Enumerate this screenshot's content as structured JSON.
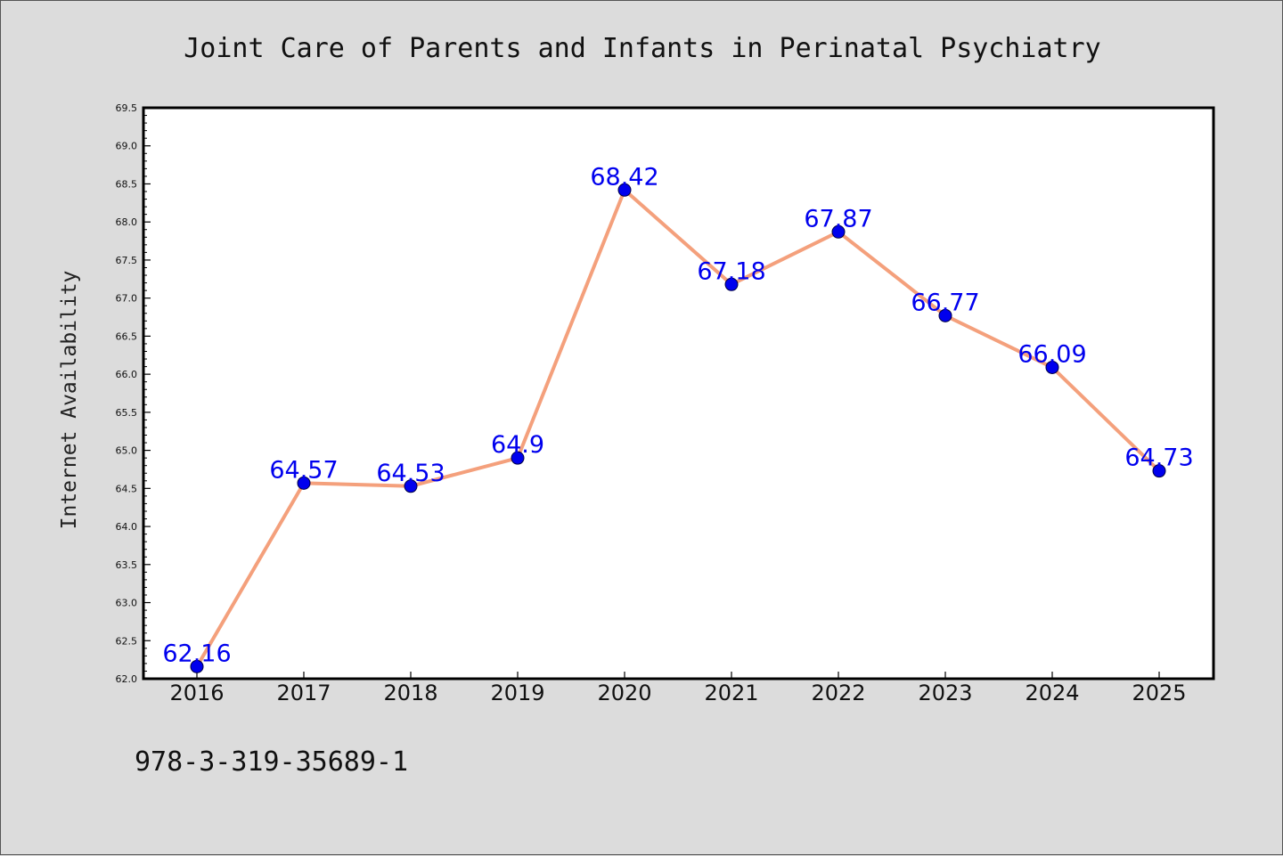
{
  "chart_data": {
    "type": "line",
    "title": "Joint Care of Parents and Infants in Perinatal Psychiatry",
    "xlabel": "",
    "ylabel": "Internet Availability",
    "categories": [
      "2016",
      "2017",
      "2018",
      "2019",
      "2020",
      "2021",
      "2022",
      "2023",
      "2024",
      "2025"
    ],
    "series": [
      {
        "values": [
          62.16,
          64.57,
          64.53,
          64.9,
          68.42,
          67.18,
          67.87,
          66.77,
          66.09,
          64.73
        ],
        "data_labels": [
          "62.16",
          "64.57",
          "64.53",
          "64.9",
          "68.42",
          "67.18",
          "67.87",
          "66.77",
          "66.09",
          "64.73"
        ]
      }
    ],
    "ylim": [
      62.0,
      69.5
    ],
    "yticks": [
      "62.0",
      "62.5",
      "63.0",
      "63.5",
      "64.0",
      "64.5",
      "65.0",
      "65.5",
      "66.0",
      "66.5",
      "67.0",
      "67.5",
      "68.0",
      "68.5",
      "69.0",
      "69.5"
    ],
    "grid": false,
    "colors": {
      "line": "#f4a07c",
      "marker": "#0000ee",
      "label": "#0000ee",
      "plot_bg": "#ffffff",
      "page_bg": "#dcdcdc"
    }
  },
  "footer": {
    "isbn": "978-3-319-35689-1"
  }
}
